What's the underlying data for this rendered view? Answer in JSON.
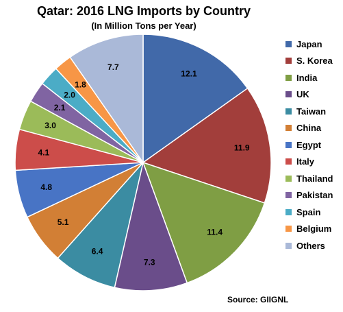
{
  "chart_data": {
    "type": "pie",
    "title": "Qatar:  2016  LNG Imports by Country",
    "subtitle": "(In Million Tons per Year)",
    "source": "Source: GIIGNL",
    "legend_position": "right",
    "slices": [
      {
        "label": "Japan",
        "value": 12.1,
        "value_label": "12.1",
        "color": "#4169a9"
      },
      {
        "label": "S. Korea",
        "value": 11.9,
        "value_label": "11.9",
        "color": "#a23e3b"
      },
      {
        "label": "India",
        "value": 11.4,
        "value_label": "11.4",
        "color": "#7f9e44"
      },
      {
        "label": "UK",
        "value": 7.3,
        "value_label": "7.3",
        "color": "#6a4d8a"
      },
      {
        "label": "Taiwan",
        "value": 6.4,
        "value_label": "6.4",
        "color": "#3b8ca2"
      },
      {
        "label": "China",
        "value": 5.1,
        "value_label": "5.1",
        "color": "#d27f35"
      },
      {
        "label": "Egypt",
        "value": 4.8,
        "value_label": "4.8",
        "color": "#4874c5"
      },
      {
        "label": "Italy",
        "value": 4.1,
        "value_label": "4.1",
        "color": "#cc4d4a"
      },
      {
        "label": "Thailand",
        "value": 3.0,
        "value_label": "3.0",
        "color": "#9bbb59"
      },
      {
        "label": "Pakistan",
        "value": 2.1,
        "value_label": "2.1",
        "color": "#8064a2"
      },
      {
        "label": "Spain",
        "value": 2.0,
        "value_label": "2.0",
        "color": "#4bacc6"
      },
      {
        "label": "Belgium",
        "value": 1.8,
        "value_label": "1.8",
        "color": "#f79646"
      },
      {
        "label": "Others",
        "value": 7.7,
        "value_label": "7.7",
        "color": "#aab9d8"
      }
    ]
  }
}
